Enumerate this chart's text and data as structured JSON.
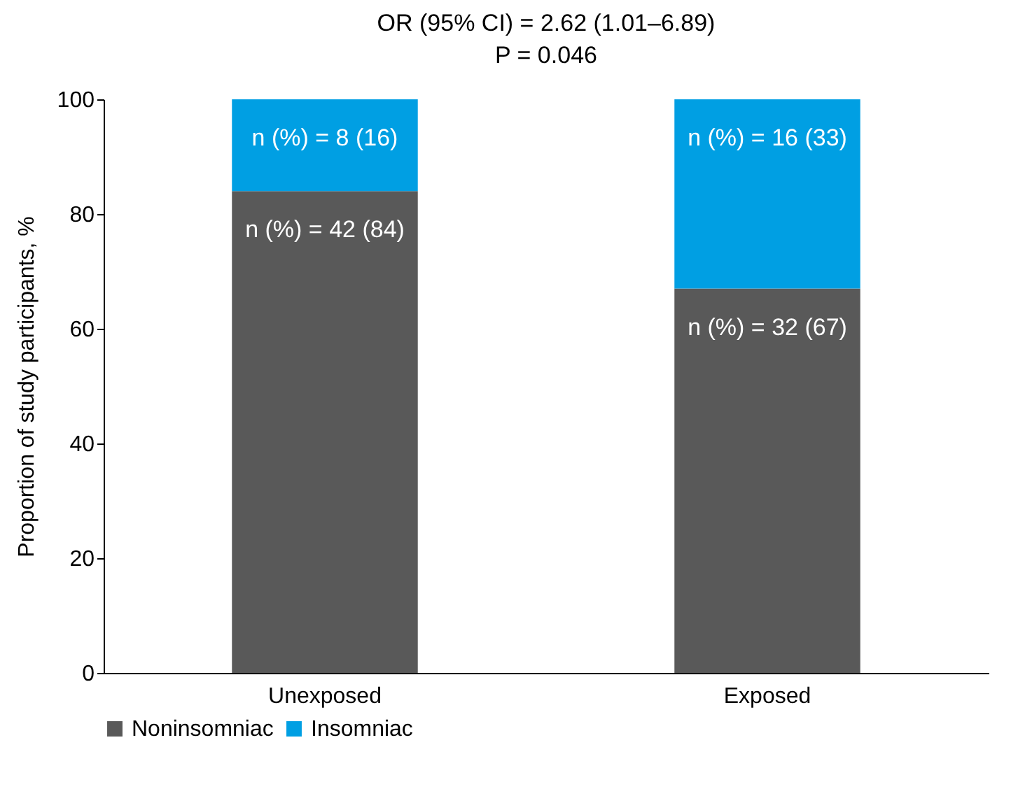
{
  "chart_data": {
    "type": "bar",
    "title": "OR (95% CI) = 2.62 (1.01–6.89)",
    "subtitle": "P = 0.046",
    "ylabel": "Proportion of study participants, %",
    "categories": [
      "Unexposed",
      "Exposed"
    ],
    "stacked": true,
    "series": [
      {
        "name": "Noninsomniac",
        "color": "#595959",
        "values": [
          84,
          67
        ],
        "value_labels": [
          "n (%) = 42 (84)",
          "n (%) = 32 (67)"
        ]
      },
      {
        "name": "Insomniac",
        "color": "#009fe3",
        "values": [
          16,
          33
        ],
        "value_labels": [
          "n (%) = 8 (16)",
          "n (%) = 16 (33)"
        ]
      }
    ],
    "ylim": [
      0,
      100
    ],
    "yticks": [
      0,
      20,
      40,
      60,
      80,
      100
    ],
    "grid": false,
    "legend": "bottom"
  }
}
